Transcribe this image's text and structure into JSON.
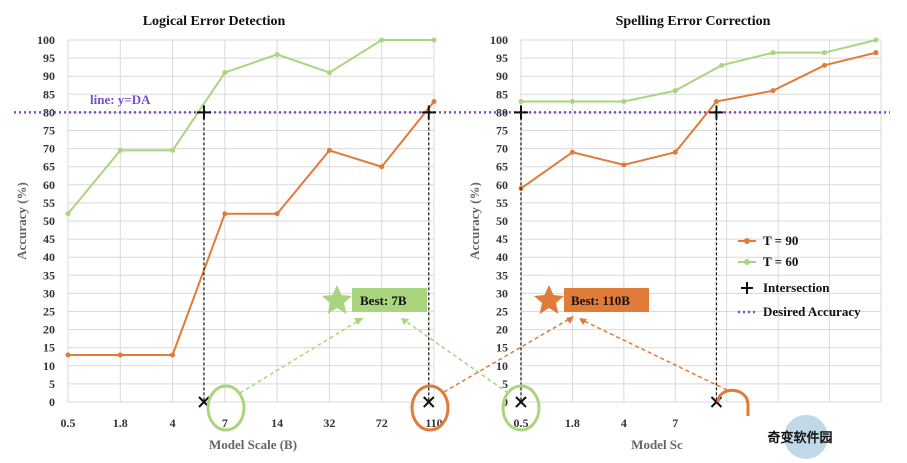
{
  "chart_data": [
    {
      "type": "line",
      "title": "Logical Error Detection",
      "xlabel": "Model Scale (B)",
      "ylabel": "Accuracy (%)",
      "categories": [
        "0.5",
        "1.8",
        "4",
        "7",
        "14",
        "32",
        "72",
        "110"
      ],
      "ylim": [
        0,
        100
      ],
      "yticks": [
        0,
        5,
        10,
        15,
        20,
        25,
        30,
        35,
        40,
        45,
        50,
        55,
        60,
        65,
        70,
        75,
        80,
        85,
        90,
        95,
        100
      ],
      "series": [
        {
          "name": "T = 90",
          "color": "#e07b39",
          "x": [
            0,
            1,
            2,
            3,
            4,
            5,
            6,
            7
          ],
          "values": [
            13,
            13,
            13,
            52,
            52,
            69.5,
            65,
            83
          ]
        },
        {
          "name": "T = 60",
          "color": "#a8d57e",
          "x": [
            0,
            1,
            2,
            3,
            4,
            5,
            6,
            7
          ],
          "values": [
            52,
            69.5,
            69.5,
            91,
            96,
            91,
            100,
            100
          ]
        }
      ],
      "orange_extra": {
        "x": 2.6,
        "value": 31
      },
      "green_extra": {
        "x": 2.6,
        "value": 79
      },
      "intersections": [
        {
          "x": 2.6,
          "value": 80
        },
        {
          "x": 6.9,
          "value": 80
        }
      ],
      "desired_line": {
        "value": 80,
        "label": "line: y=DA"
      },
      "best": {
        "label": "Best: 7B",
        "color": "#a8d57e",
        "category": "7"
      }
    },
    {
      "type": "line",
      "title": "Spelling Error Correction",
      "xlabel": "Model Sc",
      "ylabel": "Accuracy (%)",
      "categories": [
        "0.5",
        "1.8",
        "4",
        "7",
        "",
        "",
        "",
        ""
      ],
      "ylim": [
        0,
        100
      ],
      "yticks": [
        0,
        5,
        10,
        15,
        20,
        25,
        30,
        35,
        40,
        45,
        50,
        55,
        60,
        65,
        70,
        75,
        80,
        85,
        90,
        95,
        100
      ],
      "series": [
        {
          "name": "T = 90",
          "color": "#e07b39",
          "x": [
            0,
            1,
            2,
            3,
            3.8,
            4.9,
            5.9,
            6.9
          ],
          "values": [
            59,
            69,
            65.5,
            69,
            83,
            86,
            93,
            96.5
          ]
        },
        {
          "name": "T = 60",
          "color": "#a8d57e",
          "x": [
            0,
            1,
            2,
            3,
            3.9,
            4.9,
            5.9,
            6.9
          ],
          "values": [
            83,
            83,
            83,
            86,
            93,
            96.5,
            96.5,
            100
          ]
        }
      ],
      "intersections": [
        {
          "x": 0,
          "value": 80
        },
        {
          "x": 3.8,
          "value": 80
        }
      ],
      "best": {
        "label": "Best: 110B",
        "color": "#e07b39",
        "category": "110"
      }
    }
  ],
  "legend": {
    "items": [
      {
        "label": "T = 90",
        "kind": "line-dot",
        "color": "#e07b39"
      },
      {
        "label": "T = 60",
        "kind": "line-dot",
        "color": "#a8d57e"
      },
      {
        "label": "Intersection",
        "kind": "plus",
        "color": "#111111"
      },
      {
        "label": "Desired Accuracy",
        "kind": "dotted",
        "color": "#7a4fc9"
      }
    ]
  },
  "watermark": {
    "text": "奇变软件园"
  }
}
